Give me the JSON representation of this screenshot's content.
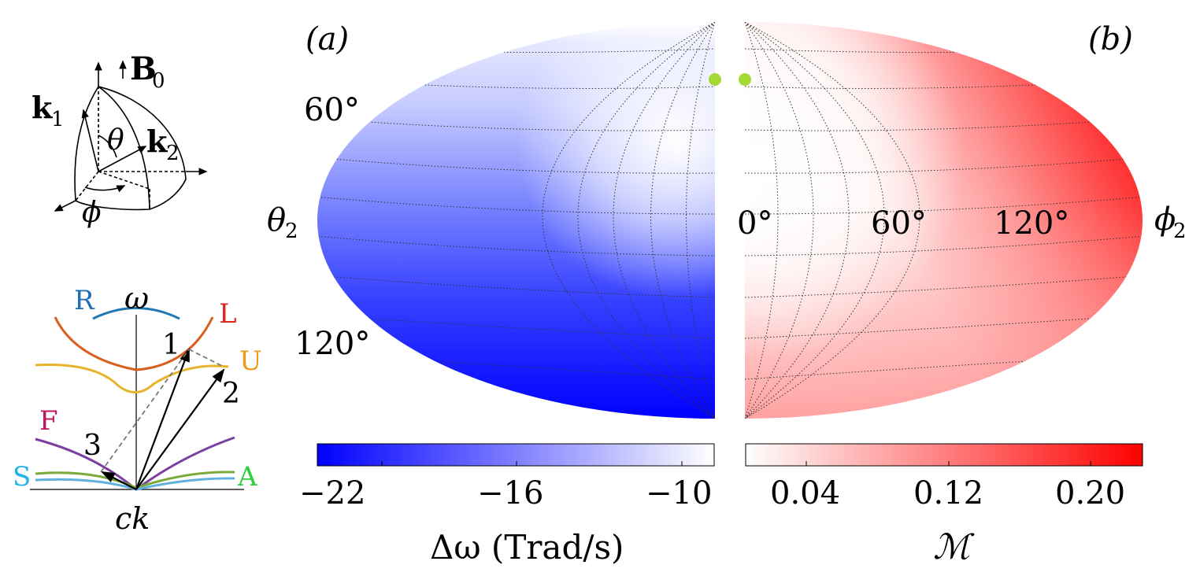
{
  "panel_labels": {
    "a": "(a)",
    "b": "(b)"
  },
  "inset_geometry": {
    "B_label": "B",
    "B_sub": "0",
    "k1_label": "k",
    "k1_sub": "1",
    "k2_label": "k",
    "k2_sub": "2",
    "theta_label": "θ",
    "phi_label": "ϕ"
  },
  "inset_dispersion": {
    "omega_label": "ω",
    "ck_label": "ck",
    "branches": [
      {
        "name": "R",
        "color": "#1f6fb5"
      },
      {
        "name": "L",
        "color": "#e0261c"
      },
      {
        "name": "U",
        "color": "#ef9a17"
      },
      {
        "name": "F",
        "color": "#c0155e"
      },
      {
        "name": "S",
        "color": "#22b4e6"
      },
      {
        "name": "A",
        "color": "#2fcf3a"
      }
    ],
    "curve_colors": {
      "R": "#1f77b4",
      "L": "#d95f1e",
      "U": "#e6b32b",
      "F": "#7b3fa0",
      "S": "#5fb2e0",
      "A": "#7aab3a"
    },
    "arrow_labels": [
      "1",
      "2",
      "3"
    ]
  },
  "map": {
    "theta_label": "θ",
    "theta_sub": "2",
    "phi_label": "ϕ",
    "phi_sub": "2",
    "theta_ticks": [
      "60°",
      "120°"
    ],
    "phi_ticks": [
      "0°",
      "60°",
      "120°"
    ],
    "marker_color": "#a6d936"
  },
  "colorbar_left": {
    "label": "Δω (Trad/s)",
    "ticks": [
      "−22",
      "−16",
      "−10"
    ],
    "from_color": "#0000ff",
    "to_color": "#ffffff"
  },
  "colorbar_right": {
    "label": "ℳ",
    "ticks": [
      "0.04",
      "0.12",
      "0.20"
    ],
    "from_color": "#ffffff",
    "to_color": "#ff0000"
  }
}
